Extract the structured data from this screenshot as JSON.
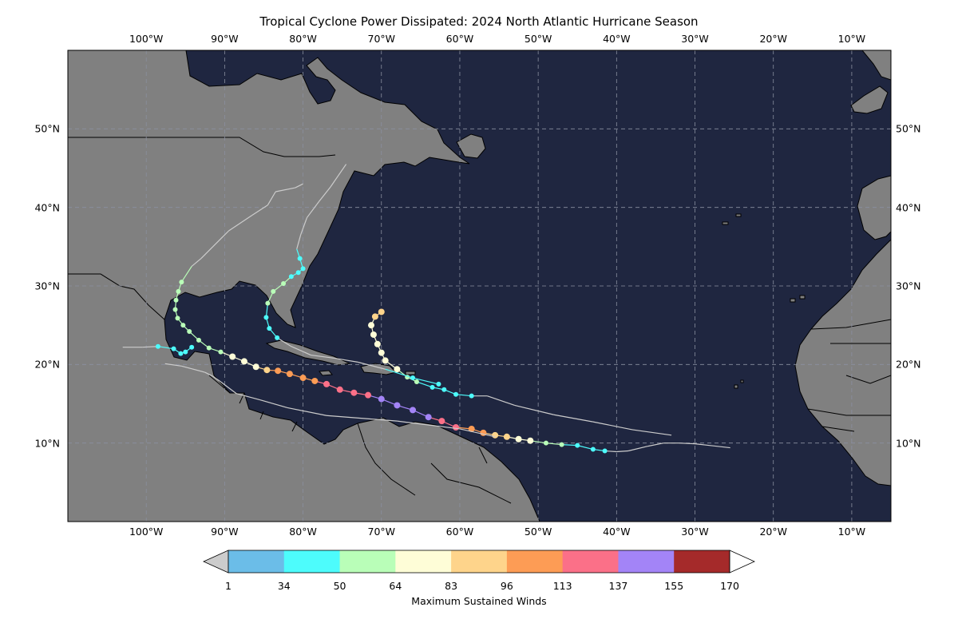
{
  "title": "Tropical Cyclone Power Dissipated: 2024 North Atlantic Hurricane Season",
  "colors": {
    "ocean": "#1f2640",
    "land": "#808080",
    "border": "#000000",
    "grid": "#8a8f9f",
    "track_below_ts": "#cccccc"
  },
  "lon_labels": [
    "100°W",
    "90°W",
    "80°W",
    "70°W",
    "60°W",
    "50°W",
    "40°W",
    "30°W",
    "20°W",
    "10°W"
  ],
  "lat_labels": [
    "10°N",
    "20°N",
    "30°N",
    "40°N",
    "50°N"
  ],
  "colorbar": {
    "label": "Maximum Sustained Winds",
    "ticks": [
      "1",
      "34",
      "50",
      "64",
      "83",
      "96",
      "113",
      "137",
      "155",
      "170"
    ],
    "colors": [
      "#6bbde8",
      "#4dfcfc",
      "#b9feb8",
      "#fefdd7",
      "#fed48b",
      "#fd9c55",
      "#fb7088",
      "#a384f7",
      "#a52a2a"
    ],
    "under_color": "#cccccc",
    "over_color": "#ffffff"
  },
  "chart_data": {
    "type": "map",
    "extent": {
      "lon": [
        -110,
        -5
      ],
      "lat": [
        0,
        60
      ]
    },
    "color_scale": "Maximum Sustained Winds",
    "tracks": [
      {
        "name": "track-1",
        "points": [
          [
            -25.5,
            9.4
          ],
          [
            -30,
            9.9
          ],
          [
            -32,
            10
          ],
          [
            -34,
            10
          ],
          [
            -36,
            9.6
          ],
          [
            -38.5,
            9
          ],
          [
            -40,
            8.9
          ]
        ]
      },
      {
        "name": "track-1b",
        "points": [
          [
            -40,
            8.9
          ],
          [
            -41.5,
            9
          ],
          [
            -43,
            9.2
          ],
          [
            -45,
            9.7
          ],
          [
            -47,
            9.8
          ],
          [
            -49,
            10
          ],
          [
            -51,
            10.3
          ],
          [
            -52.5,
            10.5
          ],
          [
            -54,
            10.8
          ],
          [
            -55.5,
            11
          ],
          [
            -57,
            11.3
          ],
          [
            -58.5,
            11.8
          ],
          [
            -60.5,
            12
          ],
          [
            -62.3,
            12.8
          ],
          [
            -64,
            13.3
          ],
          [
            -66,
            14.2
          ],
          [
            -68,
            14.8
          ],
          [
            -70,
            15.6
          ],
          [
            -71.7,
            16.1
          ],
          [
            -73.5,
            16.4
          ],
          [
            -75.3,
            16.8
          ],
          [
            -77,
            17.5
          ],
          [
            -78.5,
            17.9
          ],
          [
            -80,
            18.3
          ],
          [
            -81.7,
            18.8
          ],
          [
            -83.2,
            19.2
          ],
          [
            -84.6,
            19.3
          ],
          [
            -86,
            19.7
          ],
          [
            -87.5,
            20.4
          ],
          [
            -89,
            21
          ],
          [
            -90.5,
            21.6
          ],
          [
            -92,
            22.1
          ],
          [
            -93.3,
            23.1
          ],
          [
            -94.5,
            24.2
          ],
          [
            -95.3,
            25
          ],
          [
            -96,
            25.9
          ],
          [
            -96.3,
            27
          ],
          [
            -96.2,
            28.2
          ],
          [
            -95.9,
            29.3
          ],
          [
            -95.5,
            30.5
          ],
          [
            -94.2,
            32.5
          ],
          [
            -93,
            33.5
          ],
          [
            -91.5,
            35
          ],
          [
            -89.5,
            37
          ],
          [
            -86.5,
            39
          ],
          [
            -84.5,
            40.3
          ],
          [
            -83.5,
            42
          ],
          [
            -81,
            42.5
          ],
          [
            -80,
            43
          ]
        ]
      },
      {
        "name": "track-2",
        "points": [
          [
            -103,
            22.2
          ],
          [
            -100.5,
            22.2
          ],
          [
            -98.5,
            22.3
          ],
          [
            -96.5,
            22
          ],
          [
            -95.6,
            21.4
          ],
          [
            -95,
            21.6
          ],
          [
            -94.2,
            22.2
          ]
        ]
      },
      {
        "name": "track-3",
        "points": [
          [
            -33,
            11
          ],
          [
            -38,
            11.7
          ],
          [
            -43,
            12.7
          ],
          [
            -48,
            13.6
          ],
          [
            -53,
            14.8
          ],
          [
            -56.5,
            16
          ],
          [
            -58.5,
            16
          ],
          [
            -60.5,
            16.2
          ],
          [
            -62,
            16.8
          ],
          [
            -63.5,
            17.1
          ],
          [
            -65.5,
            17.8
          ],
          [
            -66.7,
            18.4
          ],
          [
            -68,
            19.4
          ],
          [
            -69.5,
            20.5
          ],
          [
            -70,
            21.5
          ],
          [
            -70.5,
            22.6
          ],
          [
            -71,
            23.8
          ],
          [
            -71.3,
            25
          ],
          [
            -70.8,
            26.1
          ],
          [
            -70,
            26.7
          ]
        ]
      },
      {
        "name": "track-4",
        "points": [
          [
            -62.7,
            17.5
          ],
          [
            -66,
            18.3
          ],
          [
            -69.5,
            19.4
          ],
          [
            -73,
            20.3
          ],
          [
            -76,
            20.8
          ],
          [
            -79,
            21.2
          ],
          [
            -81.5,
            22.3
          ],
          [
            -83.3,
            23.4
          ],
          [
            -84.3,
            24.6
          ],
          [
            -84.7,
            26
          ],
          [
            -84.5,
            27.8
          ],
          [
            -83.8,
            29.3
          ],
          [
            -82.5,
            30.3
          ],
          [
            -81.5,
            31.2
          ],
          [
            -80.6,
            31.7
          ],
          [
            -80,
            32.2
          ],
          [
            -80.4,
            33.5
          ],
          [
            -80.8,
            34.7
          ],
          [
            -80.3,
            36.5
          ],
          [
            -79.5,
            38.7
          ],
          [
            -78,
            40.7
          ],
          [
            -76.5,
            42.6
          ],
          [
            -74.5,
            45.5
          ]
        ]
      },
      {
        "name": "track-5",
        "points": [
          [
            -55.5,
            10.8
          ],
          [
            -60,
            11.8
          ],
          [
            -68,
            12.8
          ],
          [
            -77,
            13.5
          ],
          [
            -82,
            14.5
          ],
          [
            -85.5,
            15.5
          ],
          [
            -88.5,
            16.3
          ],
          [
            -90.5,
            17.8
          ],
          [
            -91.5,
            18.5
          ],
          [
            -92.5,
            19
          ],
          [
            -95.5,
            19.8
          ],
          [
            -97.6,
            20.1
          ]
        ]
      }
    ]
  }
}
